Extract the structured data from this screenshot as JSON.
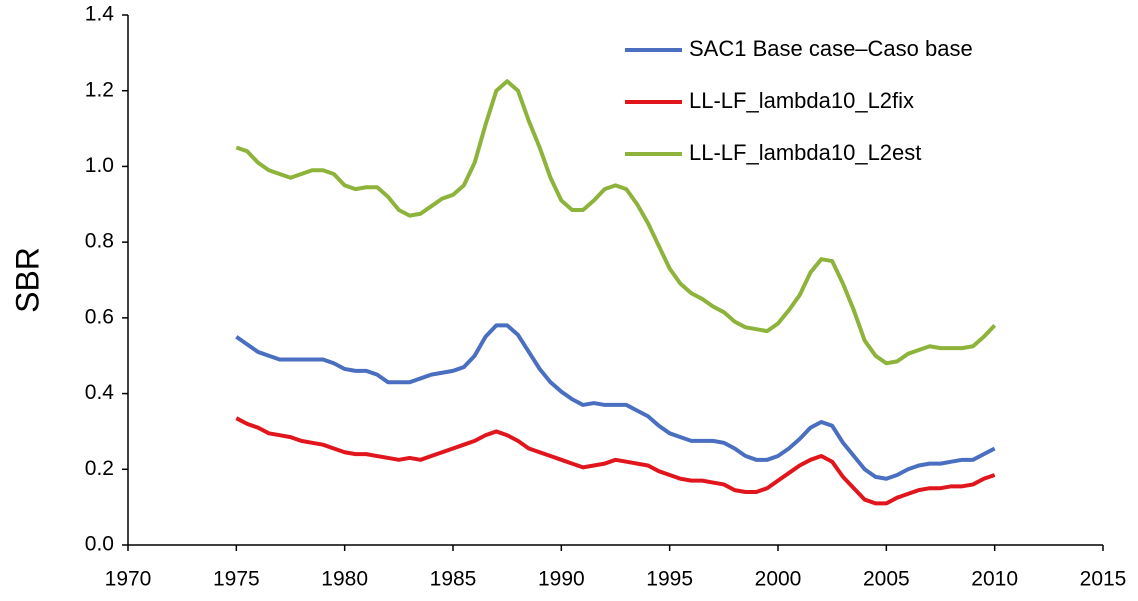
{
  "chart_data": {
    "type": "line",
    "y_label": "SBR",
    "x": [
      1975,
      1975.5,
      1976,
      1976.5,
      1977,
      1977.5,
      1978,
      1978.5,
      1979,
      1979.5,
      1980,
      1980.5,
      1981,
      1981.5,
      1982,
      1982.5,
      1983,
      1983.5,
      1984,
      1984.5,
      1985,
      1985.5,
      1986,
      1986.5,
      1987,
      1987.5,
      1988,
      1988.5,
      1989,
      1989.5,
      1990,
      1990.5,
      1991,
      1991.5,
      1992,
      1992.5,
      1993,
      1993.5,
      1994,
      1994.5,
      1995,
      1995.5,
      1996,
      1996.5,
      1997,
      1997.5,
      1998,
      1998.5,
      1999,
      1999.5,
      2000,
      2000.5,
      2001,
      2001.5,
      2002,
      2002.5,
      2003,
      2003.5,
      2004,
      2004.5,
      2005,
      2005.5,
      2006,
      2006.5,
      2007,
      2007.5,
      2008,
      2008.5,
      2009,
      2009.5,
      2010
    ],
    "series": [
      {
        "name": "SAC1 Base case–Caso base",
        "color": "#4a6fc0",
        "values": [
          0.55,
          0.53,
          0.51,
          0.5,
          0.49,
          0.49,
          0.49,
          0.49,
          0.49,
          0.48,
          0.465,
          0.46,
          0.46,
          0.45,
          0.43,
          0.43,
          0.43,
          0.44,
          0.45,
          0.455,
          0.46,
          0.47,
          0.5,
          0.55,
          0.58,
          0.58,
          0.555,
          0.51,
          0.465,
          0.43,
          0.405,
          0.385,
          0.37,
          0.375,
          0.37,
          0.37,
          0.37,
          0.355,
          0.34,
          0.315,
          0.295,
          0.285,
          0.275,
          0.275,
          0.275,
          0.27,
          0.255,
          0.235,
          0.225,
          0.225,
          0.235,
          0.255,
          0.28,
          0.31,
          0.325,
          0.315,
          0.27,
          0.235,
          0.2,
          0.18,
          0.175,
          0.185,
          0.2,
          0.21,
          0.215,
          0.215,
          0.22,
          0.225,
          0.225,
          0.24,
          0.255
        ]
      },
      {
        "name": "LL-LF_lambda10_L2fix",
        "color": "#e0161c",
        "values": [
          0.335,
          0.32,
          0.31,
          0.295,
          0.29,
          0.285,
          0.275,
          0.27,
          0.265,
          0.255,
          0.245,
          0.24,
          0.24,
          0.235,
          0.23,
          0.225,
          0.23,
          0.225,
          0.235,
          0.245,
          0.255,
          0.265,
          0.275,
          0.29,
          0.3,
          0.29,
          0.275,
          0.255,
          0.245,
          0.235,
          0.225,
          0.215,
          0.205,
          0.21,
          0.215,
          0.225,
          0.22,
          0.215,
          0.21,
          0.195,
          0.185,
          0.175,
          0.17,
          0.17,
          0.165,
          0.16,
          0.145,
          0.14,
          0.14,
          0.15,
          0.17,
          0.19,
          0.21,
          0.225,
          0.235,
          0.22,
          0.18,
          0.15,
          0.12,
          0.11,
          0.11,
          0.125,
          0.135,
          0.145,
          0.15,
          0.15,
          0.155,
          0.155,
          0.16,
          0.175,
          0.185
        ]
      },
      {
        "name": "LL-LF_lambda10_L2est",
        "color": "#8db33a",
        "values": [
          1.05,
          1.04,
          1.01,
          0.99,
          0.98,
          0.97,
          0.98,
          0.99,
          0.99,
          0.98,
          0.95,
          0.94,
          0.945,
          0.945,
          0.92,
          0.885,
          0.87,
          0.875,
          0.895,
          0.915,
          0.925,
          0.95,
          1.01,
          1.11,
          1.2,
          1.225,
          1.2,
          1.12,
          1.05,
          0.97,
          0.91,
          0.885,
          0.885,
          0.91,
          0.94,
          0.95,
          0.94,
          0.9,
          0.85,
          0.79,
          0.73,
          0.69,
          0.665,
          0.65,
          0.63,
          0.615,
          0.59,
          0.575,
          0.57,
          0.565,
          0.585,
          0.62,
          0.66,
          0.72,
          0.755,
          0.75,
          0.69,
          0.62,
          0.54,
          0.5,
          0.48,
          0.485,
          0.505,
          0.515,
          0.525,
          0.52,
          0.52,
          0.52,
          0.525,
          0.55,
          0.58
        ]
      }
    ],
    "xlim": [
      1970,
      2015
    ],
    "xticks": [
      1970,
      1975,
      1980,
      1985,
      1990,
      1995,
      2000,
      2005,
      2010,
      2015
    ],
    "ylim": [
      0,
      1.4
    ],
    "yticks": [
      {
        "value": 0,
        "label": "0.0"
      },
      {
        "value": 0.2,
        "label": "0.2"
      },
      {
        "value": 0.4,
        "label": "0.4"
      },
      {
        "value": 0.6,
        "label": "0.6"
      },
      {
        "value": 0.8,
        "label": "0.8"
      },
      {
        "value": 1.0,
        "label": "1.0"
      },
      {
        "value": 1.2,
        "label": "1.2"
      },
      {
        "value": 1.4,
        "label": "1.4"
      }
    ],
    "legend": "upper right",
    "grid": false
  }
}
